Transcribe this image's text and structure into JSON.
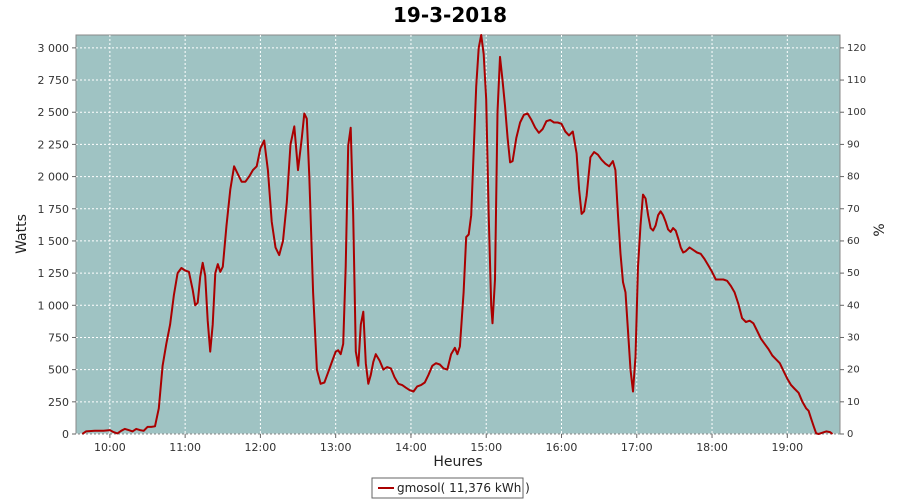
{
  "chart_data": {
    "type": "line",
    "title": "19-3-2018",
    "xlabel": "Heures",
    "ylabel": "Watts",
    "y2label": "%",
    "x_ticks": [
      "10:00",
      "11:00",
      "12:00",
      "13:00",
      "14:00",
      "15:00",
      "16:00",
      "17:00",
      "18:00",
      "19:00"
    ],
    "y_ticks": [
      "0",
      "250",
      "500",
      "750",
      "1 000",
      "1 250",
      "1 500",
      "1 750",
      "2 000",
      "2 250",
      "2 500",
      "2 750",
      "3 000"
    ],
    "y2_ticks": [
      "0",
      "10",
      "20",
      "30",
      "40",
      "50",
      "60",
      "70",
      "80",
      "90",
      "100",
      "110",
      "120"
    ],
    "xlim": [
      "09:33",
      "19:42"
    ],
    "ylim": [
      0,
      3100
    ],
    "y2lim": [
      0,
      124
    ],
    "grid": true,
    "legend_position": "bottom-center",
    "colors": {
      "plot_background": "#9fc3c3",
      "series": "#aa0000",
      "grid": "#ffffff"
    },
    "series": [
      {
        "name": "gmosol( 11,376 kWh )",
        "points": [
          [
            "09:38",
            0
          ],
          [
            "09:41",
            20
          ],
          [
            "09:48",
            25
          ],
          [
            "09:55",
            25
          ],
          [
            "10:00",
            30
          ],
          [
            "10:03",
            15
          ],
          [
            "10:06",
            5
          ],
          [
            "10:09",
            25
          ],
          [
            "10:12",
            40
          ],
          [
            "10:15",
            30
          ],
          [
            "10:18",
            20
          ],
          [
            "10:21",
            40
          ],
          [
            "10:24",
            30
          ],
          [
            "10:27",
            25
          ],
          [
            "10:30",
            55
          ],
          [
            "10:33",
            55
          ],
          [
            "10:36",
            60
          ],
          [
            "10:39",
            200
          ],
          [
            "10:42",
            530
          ],
          [
            "10:45",
            700
          ],
          [
            "10:48",
            850
          ],
          [
            "10:51",
            1080
          ],
          [
            "10:54",
            1250
          ],
          [
            "10:57",
            1290
          ],
          [
            "11:00",
            1270
          ],
          [
            "11:03",
            1260
          ],
          [
            "11:06",
            1120
          ],
          [
            "11:08",
            1000
          ],
          [
            "11:10",
            1020
          ],
          [
            "11:12",
            1220
          ],
          [
            "11:14",
            1330
          ],
          [
            "11:16",
            1230
          ],
          [
            "11:18",
            880
          ],
          [
            "11:20",
            640
          ],
          [
            "11:22",
            850
          ],
          [
            "11:24",
            1250
          ],
          [
            "11:26",
            1320
          ],
          [
            "11:28",
            1260
          ],
          [
            "11:30",
            1300
          ],
          [
            "11:33",
            1620
          ],
          [
            "11:36",
            1900
          ],
          [
            "11:39",
            2080
          ],
          [
            "11:42",
            2020
          ],
          [
            "11:45",
            1960
          ],
          [
            "11:48",
            1960
          ],
          [
            "11:51",
            2000
          ],
          [
            "11:54",
            2050
          ],
          [
            "11:57",
            2080
          ],
          [
            "12:00",
            2220
          ],
          [
            "12:03",
            2280
          ],
          [
            "12:06",
            2050
          ],
          [
            "12:09",
            1650
          ],
          [
            "12:12",
            1450
          ],
          [
            "12:15",
            1390
          ],
          [
            "12:18",
            1500
          ],
          [
            "12:21",
            1800
          ],
          [
            "12:24",
            2250
          ],
          [
            "12:27",
            2390
          ],
          [
            "12:30",
            2050
          ],
          [
            "12:33",
            2300
          ],
          [
            "12:35",
            2490
          ],
          [
            "12:37",
            2450
          ],
          [
            "12:39",
            2000
          ],
          [
            "12:42",
            1100
          ],
          [
            "12:45",
            500
          ],
          [
            "12:48",
            390
          ],
          [
            "12:51",
            400
          ],
          [
            "12:54",
            480
          ],
          [
            "12:57",
            560
          ],
          [
            "13:00",
            640
          ],
          [
            "13:02",
            650
          ],
          [
            "13:04",
            620
          ],
          [
            "13:06",
            700
          ],
          [
            "13:08",
            1300
          ],
          [
            "13:10",
            2240
          ],
          [
            "13:12",
            2380
          ],
          [
            "13:14",
            1700
          ],
          [
            "13:16",
            640
          ],
          [
            "13:18",
            530
          ],
          [
            "13:20",
            850
          ],
          [
            "13:22",
            950
          ],
          [
            "13:24",
            550
          ],
          [
            "13:26",
            390
          ],
          [
            "13:28",
            460
          ],
          [
            "13:30",
            560
          ],
          [
            "13:32",
            620
          ],
          [
            "13:35",
            570
          ],
          [
            "13:38",
            500
          ],
          [
            "13:41",
            520
          ],
          [
            "13:44",
            510
          ],
          [
            "13:47",
            440
          ],
          [
            "13:50",
            390
          ],
          [
            "13:53",
            380
          ],
          [
            "13:56",
            360
          ],
          [
            "13:59",
            340
          ],
          [
            "14:02",
            330
          ],
          [
            "14:05",
            370
          ],
          [
            "14:08",
            380
          ],
          [
            "14:11",
            400
          ],
          [
            "14:14",
            460
          ],
          [
            "14:17",
            530
          ],
          [
            "14:20",
            550
          ],
          [
            "14:23",
            540
          ],
          [
            "14:26",
            510
          ],
          [
            "14:29",
            500
          ],
          [
            "14:32",
            620
          ],
          [
            "14:35",
            670
          ],
          [
            "14:37",
            620
          ],
          [
            "14:39",
            680
          ],
          [
            "14:42",
            1100
          ],
          [
            "14:44",
            1530
          ],
          [
            "14:46",
            1550
          ],
          [
            "14:48",
            1700
          ],
          [
            "14:50",
            2200
          ],
          [
            "14:52",
            2700
          ],
          [
            "14:54",
            3000
          ],
          [
            "14:56",
            3100
          ],
          [
            "14:58",
            2950
          ],
          [
            "15:00",
            2600
          ],
          [
            "15:02",
            1700
          ],
          [
            "15:04",
            1000
          ],
          [
            "15:05",
            860
          ],
          [
            "15:07",
            1200
          ],
          [
            "15:09",
            2500
          ],
          [
            "15:11",
            2930
          ],
          [
            "15:13",
            2750
          ],
          [
            "15:15",
            2550
          ],
          [
            "15:17",
            2300
          ],
          [
            "15:19",
            2110
          ],
          [
            "15:21",
            2120
          ],
          [
            "15:24",
            2300
          ],
          [
            "15:27",
            2420
          ],
          [
            "15:30",
            2480
          ],
          [
            "15:33",
            2490
          ],
          [
            "15:36",
            2440
          ],
          [
            "15:39",
            2380
          ],
          [
            "15:42",
            2340
          ],
          [
            "15:45",
            2370
          ],
          [
            "15:48",
            2430
          ],
          [
            "15:51",
            2440
          ],
          [
            "15:54",
            2420
          ],
          [
            "15:57",
            2420
          ],
          [
            "16:00",
            2410
          ],
          [
            "16:03",
            2350
          ],
          [
            "16:06",
            2320
          ],
          [
            "16:09",
            2350
          ],
          [
            "16:12",
            2180
          ],
          [
            "16:14",
            1900
          ],
          [
            "16:16",
            1710
          ],
          [
            "16:18",
            1730
          ],
          [
            "16:20",
            1850
          ],
          [
            "16:23",
            2150
          ],
          [
            "16:26",
            2190
          ],
          [
            "16:29",
            2170
          ],
          [
            "16:32",
            2130
          ],
          [
            "16:35",
            2100
          ],
          [
            "16:38",
            2080
          ],
          [
            "16:41",
            2120
          ],
          [
            "16:43",
            2050
          ],
          [
            "16:45",
            1700
          ],
          [
            "16:47",
            1400
          ],
          [
            "16:49",
            1180
          ],
          [
            "16:51",
            1100
          ],
          [
            "16:53",
            800
          ],
          [
            "16:55",
            500
          ],
          [
            "16:57",
            330
          ],
          [
            "16:59",
            600
          ],
          [
            "17:01",
            1300
          ],
          [
            "17:03",
            1620
          ],
          [
            "17:05",
            1860
          ],
          [
            "17:07",
            1830
          ],
          [
            "17:09",
            1700
          ],
          [
            "17:11",
            1600
          ],
          [
            "17:13",
            1580
          ],
          [
            "17:15",
            1620
          ],
          [
            "17:17",
            1700
          ],
          [
            "17:19",
            1730
          ],
          [
            "17:21",
            1700
          ],
          [
            "17:23",
            1650
          ],
          [
            "17:25",
            1590
          ],
          [
            "17:27",
            1570
          ],
          [
            "17:29",
            1600
          ],
          [
            "17:31",
            1580
          ],
          [
            "17:33",
            1520
          ],
          [
            "17:35",
            1450
          ],
          [
            "17:37",
            1410
          ],
          [
            "17:39",
            1420
          ],
          [
            "17:42",
            1450
          ],
          [
            "17:45",
            1430
          ],
          [
            "17:48",
            1410
          ],
          [
            "17:51",
            1400
          ],
          [
            "17:54",
            1360
          ],
          [
            "17:57",
            1310
          ],
          [
            "18:00",
            1260
          ],
          [
            "18:03",
            1200
          ],
          [
            "18:06",
            1200
          ],
          [
            "18:09",
            1200
          ],
          [
            "18:12",
            1190
          ],
          [
            "18:15",
            1150
          ],
          [
            "18:18",
            1100
          ],
          [
            "18:21",
            1010
          ],
          [
            "18:24",
            900
          ],
          [
            "18:27",
            870
          ],
          [
            "18:30",
            880
          ],
          [
            "18:33",
            860
          ],
          [
            "18:36",
            800
          ],
          [
            "18:39",
            740
          ],
          [
            "18:42",
            700
          ],
          [
            "18:45",
            660
          ],
          [
            "18:48",
            610
          ],
          [
            "18:51",
            580
          ],
          [
            "18:54",
            550
          ],
          [
            "18:57",
            490
          ],
          [
            "19:00",
            430
          ],
          [
            "19:03",
            380
          ],
          [
            "19:06",
            350
          ],
          [
            "19:09",
            320
          ],
          [
            "19:12",
            250
          ],
          [
            "19:15",
            200
          ],
          [
            "19:17",
            180
          ],
          [
            "19:19",
            120
          ],
          [
            "19:21",
            60
          ],
          [
            "19:23",
            5
          ],
          [
            "19:25",
            0
          ],
          [
            "19:28",
            10
          ],
          [
            "19:31",
            20
          ],
          [
            "19:34",
            15
          ],
          [
            "19:36",
            0
          ]
        ]
      }
    ]
  }
}
